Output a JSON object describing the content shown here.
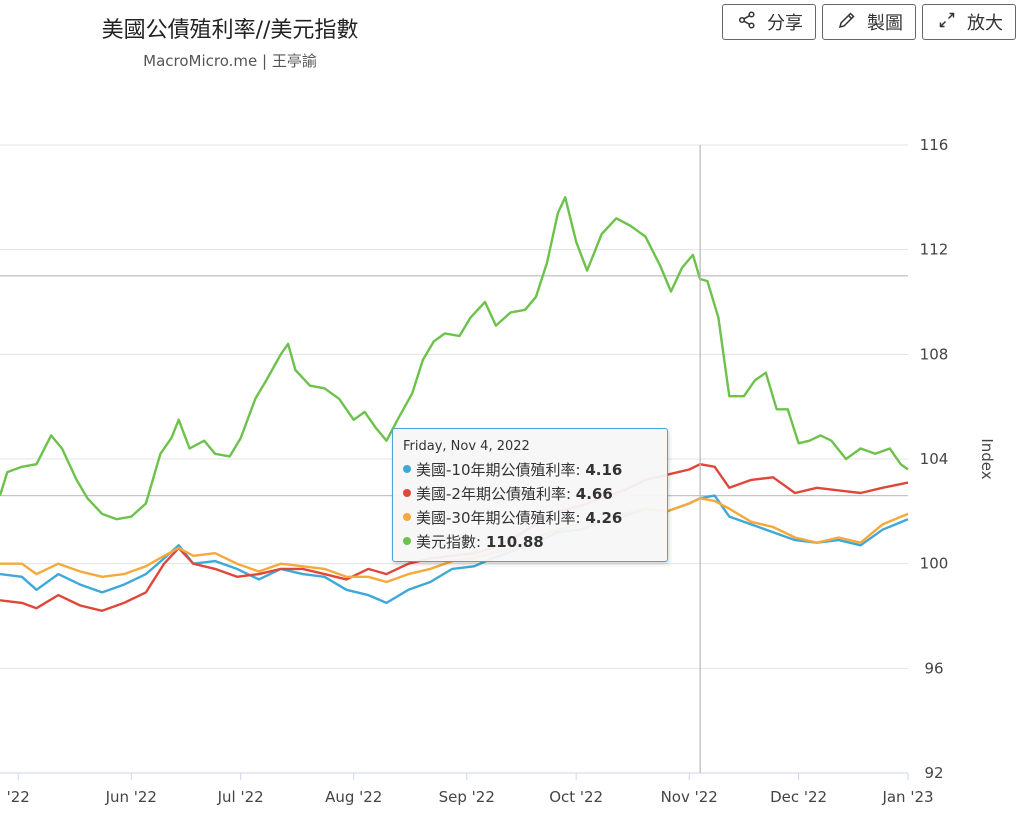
{
  "header": {
    "title": "美國公債殖利率//美元指數",
    "subtitle": "MacroMicro.me | 王亭諭"
  },
  "toolbar": {
    "share_label": "分享",
    "draw_label": "製圖",
    "expand_label": "放大"
  },
  "tooltip": {
    "date": "Friday, Nov 4, 2022",
    "rows": [
      {
        "name": "美國-10年期公債殖利率",
        "value": "4.16"
      },
      {
        "name": "美國-2年期公債殖利率",
        "value": "4.66"
      },
      {
        "name": "美國-30年期公債殖利率",
        "value": "4.26"
      },
      {
        "name": "美元指數",
        "value": "110.88"
      }
    ]
  },
  "chart_data": {
    "type": "line",
    "x_axis": {
      "type": "date",
      "range": [
        "2022-04-26",
        "2022-12-31"
      ],
      "ticks": [
        {
          "date": "2022-05-01",
          "label": "'22"
        },
        {
          "date": "2022-06-01",
          "label": "Jun '22"
        },
        {
          "date": "2022-07-01",
          "label": "Jul '22"
        },
        {
          "date": "2022-08-01",
          "label": "Aug '22"
        },
        {
          "date": "2022-09-01",
          "label": "Sep '22"
        },
        {
          "date": "2022-10-01",
          "label": "Oct '22"
        },
        {
          "date": "2022-11-01",
          "label": "Nov '22"
        },
        {
          "date": "2022-12-01",
          "label": "Dec '22"
        },
        {
          "date": "2022-12-31",
          "label": "Jan '23"
        }
      ]
    },
    "y_axis": {
      "label": "Index",
      "position": "right",
      "range": [
        92,
        116
      ],
      "ticks": [
        92,
        96,
        100,
        104,
        108,
        112,
        116
      ]
    },
    "grid": true,
    "crosshair_date": "2022-11-04",
    "series": [
      {
        "name": "美國-10年期公債殖利率",
        "color": "#3ea8d8",
        "points": [
          [
            "2022-04-26",
            99.6
          ],
          [
            "2022-05-02",
            99.5
          ],
          [
            "2022-05-06",
            99.0
          ],
          [
            "2022-05-12",
            99.6
          ],
          [
            "2022-05-18",
            99.2
          ],
          [
            "2022-05-24",
            98.9
          ],
          [
            "2022-05-30",
            99.2
          ],
          [
            "2022-06-05",
            99.6
          ],
          [
            "2022-06-10",
            100.2
          ],
          [
            "2022-06-14",
            100.7
          ],
          [
            "2022-06-18",
            100.0
          ],
          [
            "2022-06-24",
            100.1
          ],
          [
            "2022-06-30",
            99.8
          ],
          [
            "2022-07-06",
            99.4
          ],
          [
            "2022-07-12",
            99.8
          ],
          [
            "2022-07-18",
            99.6
          ],
          [
            "2022-07-24",
            99.5
          ],
          [
            "2022-07-30",
            99.0
          ],
          [
            "2022-08-05",
            98.8
          ],
          [
            "2022-08-10",
            98.5
          ],
          [
            "2022-08-16",
            99.0
          ],
          [
            "2022-08-22",
            99.3
          ],
          [
            "2022-08-28",
            99.8
          ],
          [
            "2022-09-03",
            99.9
          ],
          [
            "2022-09-08",
            100.2
          ],
          [
            "2022-09-14",
            100.5
          ],
          [
            "2022-09-20",
            100.8
          ],
          [
            "2022-09-26",
            101.2
          ],
          [
            "2022-10-02",
            101.3
          ],
          [
            "2022-10-08",
            101.6
          ],
          [
            "2022-10-14",
            101.8
          ],
          [
            "2022-10-20",
            102.1
          ],
          [
            "2022-10-26",
            102.0
          ],
          [
            "2022-11-01",
            102.3
          ],
          [
            "2022-11-04",
            102.5
          ],
          [
            "2022-11-08",
            102.6
          ],
          [
            "2022-11-12",
            101.8
          ],
          [
            "2022-11-18",
            101.5
          ],
          [
            "2022-11-24",
            101.2
          ],
          [
            "2022-11-30",
            100.9
          ],
          [
            "2022-12-06",
            100.8
          ],
          [
            "2022-12-12",
            100.9
          ],
          [
            "2022-12-18",
            100.7
          ],
          [
            "2022-12-24",
            101.3
          ],
          [
            "2022-12-31",
            101.7
          ]
        ]
      },
      {
        "name": "美國-2年期公債殖利率",
        "color": "#e0473a",
        "points": [
          [
            "2022-04-26",
            98.6
          ],
          [
            "2022-05-02",
            98.5
          ],
          [
            "2022-05-06",
            98.3
          ],
          [
            "2022-05-12",
            98.8
          ],
          [
            "2022-05-18",
            98.4
          ],
          [
            "2022-05-24",
            98.2
          ],
          [
            "2022-05-30",
            98.5
          ],
          [
            "2022-06-05",
            98.9
          ],
          [
            "2022-06-10",
            100.0
          ],
          [
            "2022-06-14",
            100.6
          ],
          [
            "2022-06-18",
            100.0
          ],
          [
            "2022-06-24",
            99.8
          ],
          [
            "2022-06-30",
            99.5
          ],
          [
            "2022-07-06",
            99.6
          ],
          [
            "2022-07-12",
            99.8
          ],
          [
            "2022-07-18",
            99.8
          ],
          [
            "2022-07-24",
            99.6
          ],
          [
            "2022-07-30",
            99.4
          ],
          [
            "2022-08-05",
            99.8
          ],
          [
            "2022-08-10",
            99.6
          ],
          [
            "2022-08-16",
            100.0
          ],
          [
            "2022-08-22",
            100.2
          ],
          [
            "2022-08-28",
            100.3
          ],
          [
            "2022-09-03",
            100.4
          ],
          [
            "2022-09-08",
            100.6
          ],
          [
            "2022-09-14",
            101.0
          ],
          [
            "2022-09-20",
            101.5
          ],
          [
            "2022-09-26",
            102.0
          ],
          [
            "2022-10-02",
            102.2
          ],
          [
            "2022-10-08",
            102.5
          ],
          [
            "2022-10-14",
            102.8
          ],
          [
            "2022-10-20",
            103.2
          ],
          [
            "2022-10-26",
            103.4
          ],
          [
            "2022-11-01",
            103.6
          ],
          [
            "2022-11-04",
            103.8
          ],
          [
            "2022-11-08",
            103.7
          ],
          [
            "2022-11-12",
            102.9
          ],
          [
            "2022-11-18",
            103.2
          ],
          [
            "2022-11-24",
            103.3
          ],
          [
            "2022-11-30",
            102.7
          ],
          [
            "2022-12-06",
            102.9
          ],
          [
            "2022-12-12",
            102.8
          ],
          [
            "2022-12-18",
            102.7
          ],
          [
            "2022-12-24",
            102.9
          ],
          [
            "2022-12-31",
            103.1
          ]
        ]
      },
      {
        "name": "美國-30年期公債殖利率",
        "color": "#f5a93b",
        "points": [
          [
            "2022-04-26",
            100.0
          ],
          [
            "2022-05-02",
            100.0
          ],
          [
            "2022-05-06",
            99.6
          ],
          [
            "2022-05-12",
            100.0
          ],
          [
            "2022-05-18",
            99.7
          ],
          [
            "2022-05-24",
            99.5
          ],
          [
            "2022-05-30",
            99.6
          ],
          [
            "2022-06-05",
            99.9
          ],
          [
            "2022-06-10",
            100.3
          ],
          [
            "2022-06-14",
            100.6
          ],
          [
            "2022-06-18",
            100.3
          ],
          [
            "2022-06-24",
            100.4
          ],
          [
            "2022-06-30",
            100.0
          ],
          [
            "2022-07-06",
            99.7
          ],
          [
            "2022-07-12",
            100.0
          ],
          [
            "2022-07-18",
            99.9
          ],
          [
            "2022-07-24",
            99.8
          ],
          [
            "2022-07-30",
            99.5
          ],
          [
            "2022-08-05",
            99.5
          ],
          [
            "2022-08-10",
            99.3
          ],
          [
            "2022-08-16",
            99.6
          ],
          [
            "2022-08-22",
            99.8
          ],
          [
            "2022-08-28",
            100.1
          ],
          [
            "2022-09-03",
            100.2
          ],
          [
            "2022-09-08",
            100.4
          ],
          [
            "2022-09-14",
            100.6
          ],
          [
            "2022-09-20",
            101.0
          ],
          [
            "2022-09-26",
            101.3
          ],
          [
            "2022-10-02",
            101.5
          ],
          [
            "2022-10-08",
            101.7
          ],
          [
            "2022-10-14",
            101.9
          ],
          [
            "2022-10-20",
            102.1
          ],
          [
            "2022-10-26",
            102.0
          ],
          [
            "2022-11-01",
            102.3
          ],
          [
            "2022-11-04",
            102.5
          ],
          [
            "2022-11-08",
            102.4
          ],
          [
            "2022-11-12",
            102.1
          ],
          [
            "2022-11-18",
            101.6
          ],
          [
            "2022-11-24",
            101.4
          ],
          [
            "2022-11-30",
            101.0
          ],
          [
            "2022-12-06",
            100.8
          ],
          [
            "2022-12-12",
            101.0
          ],
          [
            "2022-12-18",
            100.8
          ],
          [
            "2022-12-24",
            101.5
          ],
          [
            "2022-12-31",
            101.9
          ]
        ]
      },
      {
        "name": "美元指數",
        "color": "#6cc24a",
        "points": [
          [
            "2022-04-26",
            102.6
          ],
          [
            "2022-04-28",
            103.5
          ],
          [
            "2022-05-02",
            103.7
          ],
          [
            "2022-05-06",
            103.8
          ],
          [
            "2022-05-10",
            104.9
          ],
          [
            "2022-05-13",
            104.4
          ],
          [
            "2022-05-17",
            103.2
          ],
          [
            "2022-05-20",
            102.5
          ],
          [
            "2022-05-24",
            101.9
          ],
          [
            "2022-05-28",
            101.7
          ],
          [
            "2022-06-01",
            101.8
          ],
          [
            "2022-06-05",
            102.3
          ],
          [
            "2022-06-09",
            104.2
          ],
          [
            "2022-06-12",
            104.8
          ],
          [
            "2022-06-14",
            105.5
          ],
          [
            "2022-06-17",
            104.4
          ],
          [
            "2022-06-21",
            104.7
          ],
          [
            "2022-06-24",
            104.2
          ],
          [
            "2022-06-28",
            104.1
          ],
          [
            "2022-07-01",
            104.8
          ],
          [
            "2022-07-05",
            106.3
          ],
          [
            "2022-07-08",
            107.0
          ],
          [
            "2022-07-12",
            108.0
          ],
          [
            "2022-07-14",
            108.4
          ],
          [
            "2022-07-16",
            107.4
          ],
          [
            "2022-07-20",
            106.8
          ],
          [
            "2022-07-24",
            106.7
          ],
          [
            "2022-07-28",
            106.3
          ],
          [
            "2022-08-01",
            105.5
          ],
          [
            "2022-08-04",
            105.8
          ],
          [
            "2022-08-07",
            105.2
          ],
          [
            "2022-08-10",
            104.7
          ],
          [
            "2022-08-13",
            105.5
          ],
          [
            "2022-08-17",
            106.5
          ],
          [
            "2022-08-20",
            107.8
          ],
          [
            "2022-08-23",
            108.5
          ],
          [
            "2022-08-26",
            108.8
          ],
          [
            "2022-08-30",
            108.7
          ],
          [
            "2022-09-02",
            109.4
          ],
          [
            "2022-09-06",
            110.0
          ],
          [
            "2022-09-09",
            109.1
          ],
          [
            "2022-09-13",
            109.6
          ],
          [
            "2022-09-17",
            109.7
          ],
          [
            "2022-09-20",
            110.2
          ],
          [
            "2022-09-23",
            111.5
          ],
          [
            "2022-09-26",
            113.4
          ],
          [
            "2022-09-28",
            114.0
          ],
          [
            "2022-10-01",
            112.3
          ],
          [
            "2022-10-04",
            111.2
          ],
          [
            "2022-10-08",
            112.6
          ],
          [
            "2022-10-12",
            113.2
          ],
          [
            "2022-10-16",
            112.9
          ],
          [
            "2022-10-20",
            112.5
          ],
          [
            "2022-10-24",
            111.4
          ],
          [
            "2022-10-27",
            110.4
          ],
          [
            "2022-10-30",
            111.3
          ],
          [
            "2022-11-02",
            111.8
          ],
          [
            "2022-11-04",
            110.88
          ],
          [
            "2022-11-06",
            110.8
          ],
          [
            "2022-11-09",
            109.4
          ],
          [
            "2022-11-12",
            106.4
          ],
          [
            "2022-11-16",
            106.4
          ],
          [
            "2022-11-19",
            107.0
          ],
          [
            "2022-11-22",
            107.3
          ],
          [
            "2022-11-25",
            105.9
          ],
          [
            "2022-11-28",
            105.9
          ],
          [
            "2022-12-01",
            104.6
          ],
          [
            "2022-12-04",
            104.7
          ],
          [
            "2022-12-07",
            104.9
          ],
          [
            "2022-12-10",
            104.7
          ],
          [
            "2022-12-14",
            104.0
          ],
          [
            "2022-12-18",
            104.4
          ],
          [
            "2022-12-22",
            104.2
          ],
          [
            "2022-12-26",
            104.4
          ],
          [
            "2022-12-29",
            103.8
          ],
          [
            "2022-12-31",
            103.6
          ]
        ]
      }
    ]
  }
}
